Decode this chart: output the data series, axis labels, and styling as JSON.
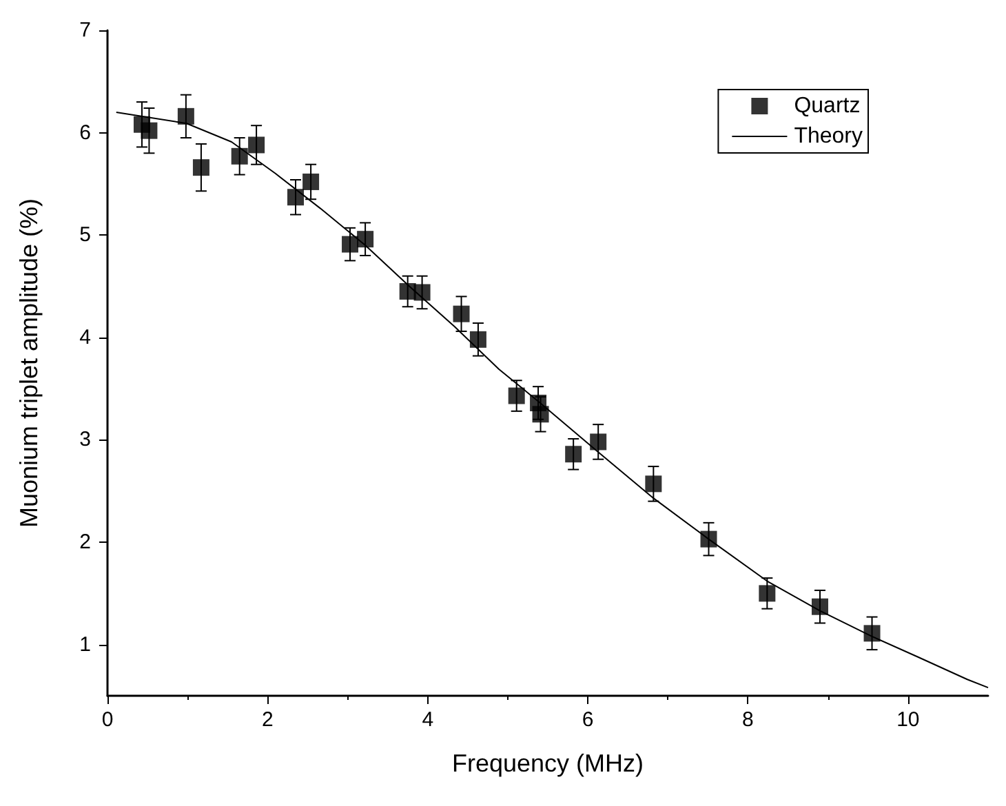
{
  "chart_data": {
    "type": "scatter",
    "xlabel": "Frequency (MHz)",
    "ylabel": "Muonium triplet amplitude (%)",
    "xlim": [
      0,
      11
    ],
    "xticks": [
      0,
      2,
      4,
      6,
      8,
      10
    ],
    "ylim": [
      0.5,
      7
    ],
    "yticks": [
      1,
      2,
      3,
      4,
      5,
      6,
      7
    ],
    "grid": false,
    "legend": "top right",
    "series": [
      {
        "name": "Quartz",
        "type": "scatter",
        "marker": "square",
        "color": "#000000",
        "x": [
          0.43,
          0.52,
          0.98,
          1.17,
          1.65,
          1.86,
          2.35,
          2.54,
          3.03,
          3.22,
          3.75,
          3.93,
          4.42,
          4.63,
          5.11,
          5.38,
          5.41,
          5.82,
          6.13,
          6.82,
          7.51,
          8.24,
          8.9,
          9.55
        ],
        "values": [
          6.08,
          6.02,
          6.16,
          5.66,
          5.77,
          5.88,
          5.37,
          5.52,
          4.91,
          4.96,
          4.45,
          4.44,
          4.23,
          3.98,
          3.43,
          3.36,
          3.25,
          2.86,
          2.98,
          2.57,
          2.03,
          1.5,
          1.37,
          1.11
        ],
        "errors": [
          0.22,
          0.22,
          0.21,
          0.23,
          0.18,
          0.19,
          0.17,
          0.17,
          0.16,
          0.16,
          0.15,
          0.16,
          0.17,
          0.16,
          0.15,
          0.16,
          0.17,
          0.15,
          0.17,
          0.17,
          0.16,
          0.15,
          0.16,
          0.16
        ]
      },
      {
        "name": "Theory",
        "type": "line",
        "marker": "none",
        "line_style": "solid",
        "color": "#000000",
        "x": [
          0.11,
          0.99,
          1.55,
          2.1,
          2.66,
          3.22,
          3.77,
          4.33,
          4.89,
          5.39,
          6.13,
          6.82,
          7.51,
          8.24,
          8.9,
          9.55,
          10.12,
          10.74,
          11
        ],
        "values": [
          6.2,
          6.09,
          5.91,
          5.6,
          5.26,
          4.9,
          4.5,
          4.11,
          3.69,
          3.37,
          2.88,
          2.43,
          2.03,
          1.62,
          1.33,
          1.08,
          0.88,
          0.66,
          0.58
        ]
      }
    ]
  }
}
